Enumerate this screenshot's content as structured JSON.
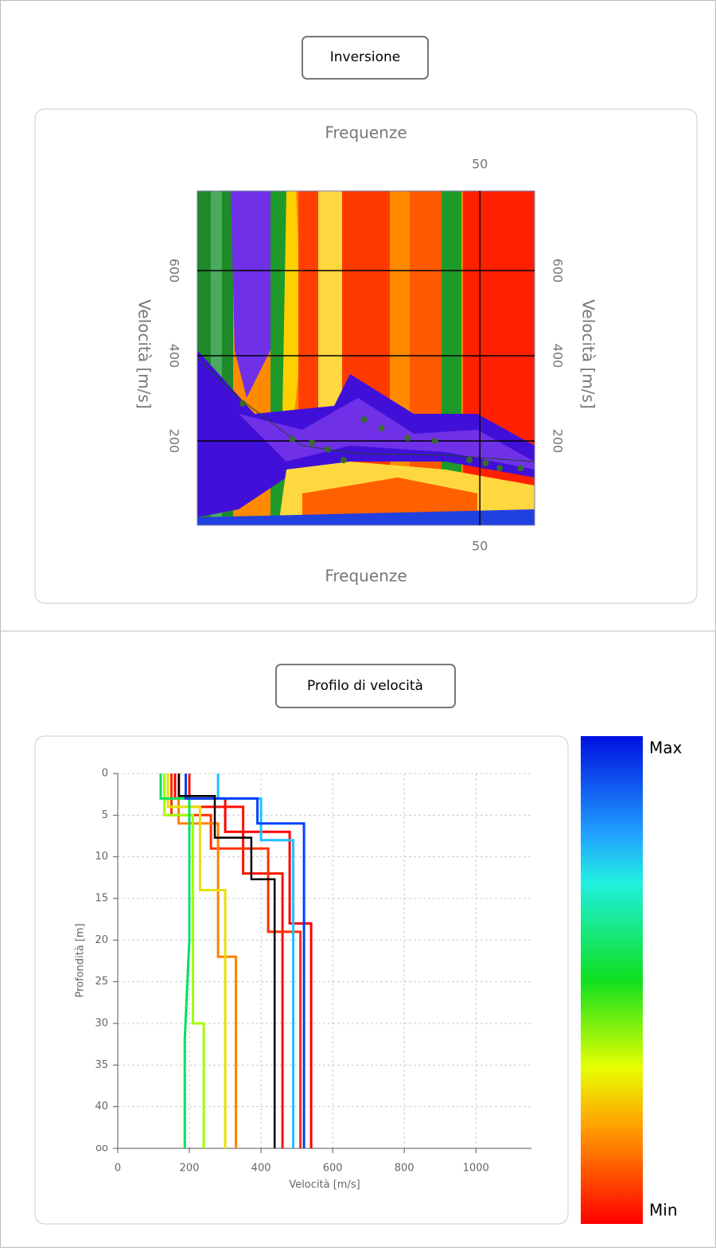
{
  "chart_data": [
    {
      "type": "scatter",
      "title": "Inversione",
      "xlabel": "Frequenze",
      "ylabel": "Velocità [m/s]",
      "xlim": [
        1.5,
        59.4
      ],
      "ylim": [
        2,
        787
      ],
      "xticks": [
        50
      ],
      "yticks": [
        200,
        400,
        600
      ],
      "grid": true,
      "color": "#3a6a30",
      "x": [
        9.3,
        17.8,
        21.2,
        23.9,
        26.6,
        30.1,
        33.1,
        37.6,
        42.3,
        48.2,
        51,
        53.4,
        57
      ],
      "values": [
        288,
        204,
        196,
        180,
        155,
        250,
        230,
        207,
        200,
        155,
        148,
        136,
        136
      ]
    },
    {
      "type": "line",
      "title": "Profilo di velocità",
      "xlabel": "Velocità [m/s]",
      "ylabel": "Profondità [m]",
      "xlim": [
        0,
        1155
      ],
      "ylim": [
        45,
        0
      ],
      "xticks": [
        0,
        200,
        400,
        600,
        800,
        1000
      ],
      "yticks": [
        0,
        5,
        10,
        15,
        20,
        25,
        30,
        35,
        40,
        {
          "value": 45,
          "label": "oo"
        }
      ],
      "grid": true,
      "colorbar": {
        "max_label": "Max",
        "min_label": "Min"
      },
      "series": [
        {
          "color": "#ff0000",
          "x": [
            160,
            160,
            300,
            300,
            480,
            480,
            540,
            540
          ],
          "values": [
            0,
            3,
            3,
            7,
            7,
            18,
            18,
            45
          ]
        },
        {
          "color": "#ff1000",
          "x": [
            200,
            200,
            350,
            350,
            460,
            460
          ],
          "values": [
            0,
            4,
            4,
            12,
            12,
            45
          ]
        },
        {
          "color": "#ff3000",
          "x": [
            150,
            150,
            260,
            260,
            420,
            420,
            510,
            510
          ],
          "values": [
            0,
            5,
            5,
            9,
            9,
            19,
            19,
            45
          ]
        },
        {
          "color": "#ff8000",
          "x": [
            170,
            170,
            280,
            280,
            330,
            330
          ],
          "values": [
            0,
            6,
            6,
            22,
            22,
            45
          ]
        },
        {
          "color": "#e8e000",
          "x": [
            140,
            140,
            230,
            230,
            300,
            300
          ],
          "values": [
            0,
            4,
            4,
            14,
            14,
            45
          ]
        },
        {
          "color": "#a0ff00",
          "x": [
            130,
            130,
            210,
            210,
            240,
            240
          ],
          "values": [
            0,
            5,
            5,
            30,
            30,
            45
          ]
        },
        {
          "color": "#00e060",
          "x": [
            120,
            120,
            200,
            200,
            187,
            187
          ],
          "values": [
            0,
            3,
            3,
            20,
            32,
            45
          ]
        },
        {
          "color": "#20c0ff",
          "x": [
            280,
            280,
            400,
            400,
            490,
            490
          ],
          "values": [
            0,
            3,
            3,
            8,
            8,
            45
          ]
        },
        {
          "color": "#0040ff",
          "x": [
            190,
            190,
            390,
            390,
            520,
            520
          ],
          "values": [
            0,
            3,
            3,
            6,
            6,
            45
          ]
        },
        {
          "color": "#000000",
          "x": [
            171,
            171,
            271,
            271,
            373,
            373,
            438,
            438
          ],
          "values": [
            0,
            2.7,
            2.7,
            7.7,
            7.7,
            12.7,
            12.7,
            45
          ]
        }
      ]
    }
  ]
}
